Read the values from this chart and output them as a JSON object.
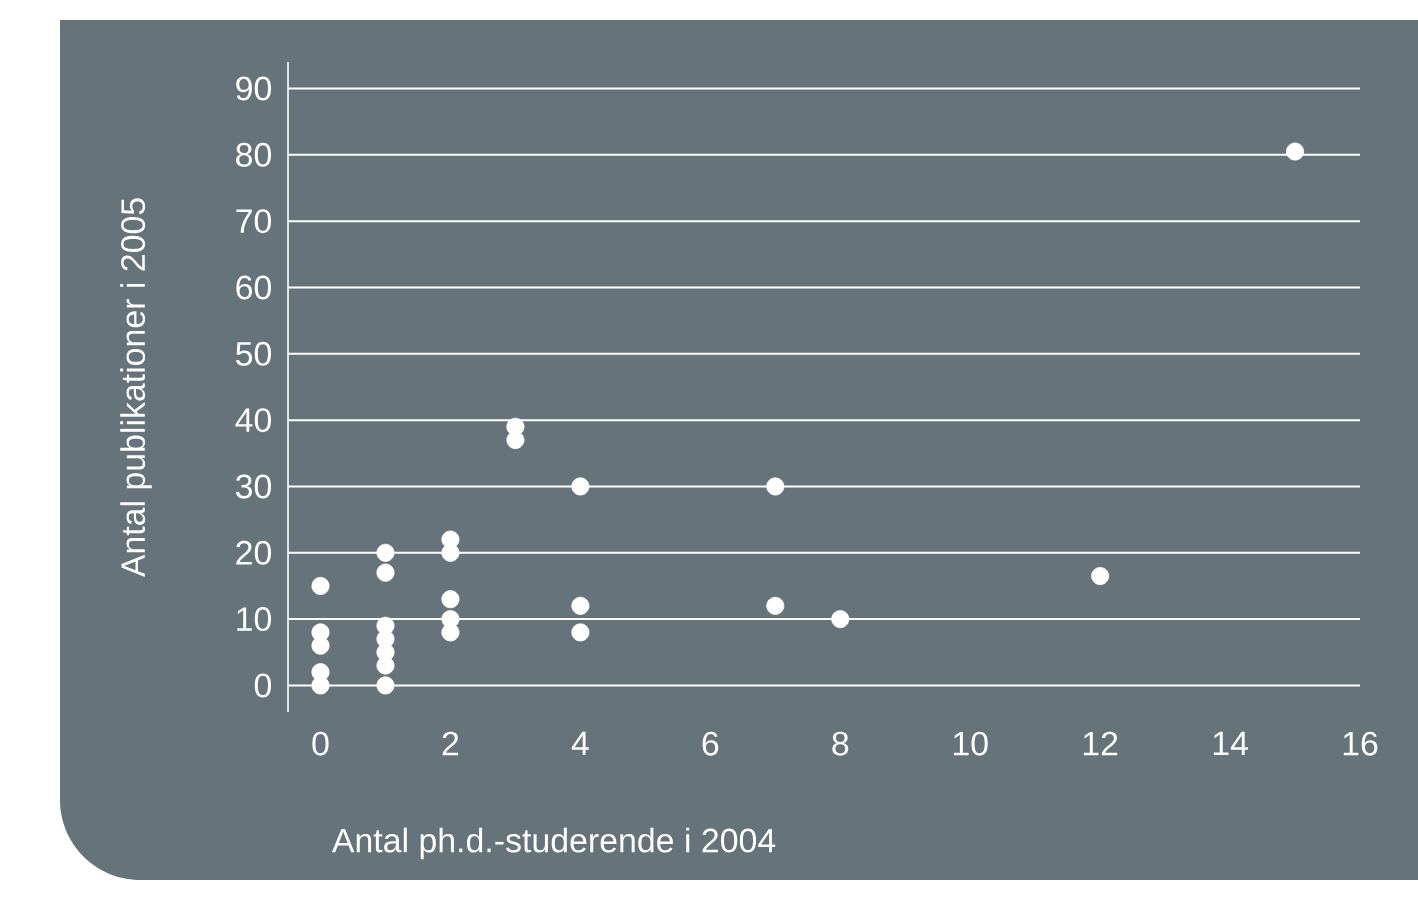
{
  "chart_data": {
    "type": "scatter",
    "xlabel": "Antal ph.d.-studerende i 2004",
    "ylabel": "Antal publikationer i 2005",
    "x": [
      0,
      0,
      0,
      0,
      0,
      1,
      1,
      1,
      1,
      1,
      1,
      1,
      2,
      2,
      2,
      2,
      2,
      3,
      3,
      4,
      4,
      4,
      7,
      7,
      8,
      12,
      15
    ],
    "values": [
      15,
      8,
      6,
      2,
      0,
      20,
      17,
      9,
      7,
      5,
      3,
      0,
      22,
      20,
      13,
      10,
      8,
      39,
      37,
      30,
      12,
      8,
      30,
      12,
      10,
      16.5,
      80.5
    ],
    "color": "#ffffff",
    "grid": "y",
    "xlim": [
      -0.5,
      16
    ],
    "ylim": [
      -4,
      94
    ],
    "xticks": [
      0,
      2,
      4,
      6,
      8,
      10,
      12,
      14,
      16
    ],
    "yticks": [
      0,
      10,
      20,
      30,
      40,
      50,
      60,
      70,
      80,
      90
    ]
  }
}
